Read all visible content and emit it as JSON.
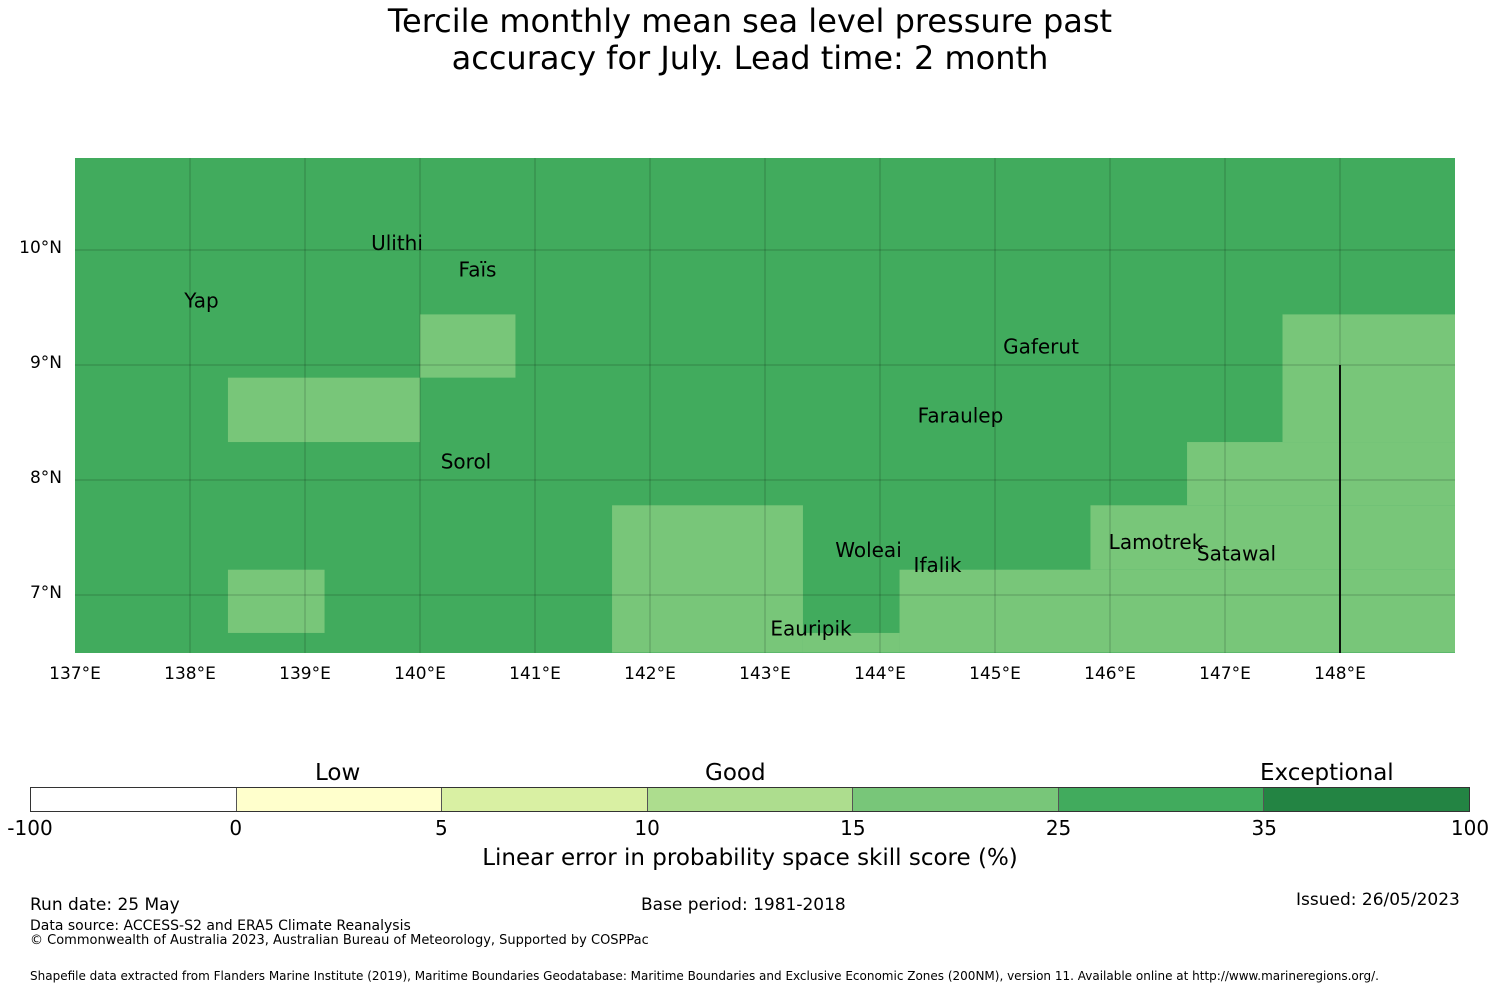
{
  "title": {
    "line1": "Tercile monthly mean sea level pressure past",
    "line2": "accuracy for July. Lead time: 2 month"
  },
  "map": {
    "lon_range": [
      137,
      149
    ],
    "lat_range": [
      6.5,
      10.8
    ],
    "x_ticks": [
      "137°E",
      "138°E",
      "139°E",
      "140°E",
      "141°E",
      "142°E",
      "143°E",
      "144°E",
      "145°E",
      "146°E",
      "147°E",
      "148°E"
    ],
    "y_ticks": [
      "10°N",
      "9°N",
      "8°N",
      "7°N"
    ],
    "background_color": "#41ab5d",
    "good_cell_color": "#78c679",
    "grid_cells_15_25": [
      {
        "lon": [
          138.33,
          140.0
        ],
        "lat": [
          8.33,
          8.89
        ]
      },
      {
        "lon": [
          140.0,
          140.83
        ],
        "lat": [
          8.89,
          9.44
        ]
      },
      {
        "lon": [
          138.33,
          139.17
        ],
        "lat": [
          6.67,
          7.22
        ]
      },
      {
        "lon": [
          141.67,
          143.33
        ],
        "lat": [
          6.5,
          7.78
        ]
      },
      {
        "lon": [
          143.33,
          144.17
        ],
        "lat": [
          6.5,
          6.67
        ]
      },
      {
        "lon": [
          144.17,
          149.0
        ],
        "lat": [
          6.5,
          7.22
        ]
      },
      {
        "lon": [
          145.83,
          149.0
        ],
        "lat": [
          7.22,
          7.78
        ]
      },
      {
        "lon": [
          146.67,
          149.0
        ],
        "lat": [
          7.78,
          8.33
        ]
      },
      {
        "lon": [
          147.5,
          149.0
        ],
        "lat": [
          8.33,
          9.44
        ]
      }
    ],
    "boundary_line": {
      "lon": 148.0,
      "lat": [
        6.5,
        9.0
      ]
    },
    "places": [
      {
        "name": "Yap",
        "lon": 138.1,
        "lat": 9.5
      },
      {
        "name": "Ulithi",
        "lon": 139.8,
        "lat": 10.0
      },
      {
        "name": "Faïs",
        "lon": 140.5,
        "lat": 9.77
      },
      {
        "name": "Sorol",
        "lon": 140.4,
        "lat": 8.1
      },
      {
        "name": "Gaferut",
        "lon": 145.4,
        "lat": 9.1
      },
      {
        "name": "Faraulep",
        "lon": 144.7,
        "lat": 8.5
      },
      {
        "name": "Woleai",
        "lon": 143.9,
        "lat": 7.33
      },
      {
        "name": "Ifalik",
        "lon": 144.5,
        "lat": 7.2
      },
      {
        "name": "Lamotrek",
        "lon": 146.4,
        "lat": 7.4
      },
      {
        "name": "Satawal",
        "lon": 147.1,
        "lat": 7.3
      },
      {
        "name": "Eauripik",
        "lon": 143.4,
        "lat": 6.65
      }
    ]
  },
  "colorbar": {
    "categories": [
      "Low",
      "Good",
      "Exceptional"
    ],
    "boundaries": [
      "-100",
      "0",
      "5",
      "10",
      "15",
      "25",
      "35",
      "100"
    ],
    "colors": [
      "#ffffff",
      "#ffffcc",
      "#d9f0a3",
      "#addd8e",
      "#78c679",
      "#41ab5d",
      "#238443"
    ],
    "title": "Linear error in probability space skill score (%)"
  },
  "footer": {
    "run_date": "Run date: 25 May",
    "base_period": "Base period: 1981-2018",
    "issued": "Issued: 26/05/2023",
    "data_source": "Data source: ACCESS-S2 and ERA5 Climate Reanalysis",
    "copyright": "© Commonwealth of Australia 2023, Australian Bureau of Meteorology, Supported by COSPPac",
    "shapefile": "Shapefile data extracted from Flanders Marine Institute (2019), Maritime Boundaries Geodatabase: Maritime Boundaries and Exclusive Economic Zones (200NM), version 11. Available online at http://www.marineregions.org/."
  }
}
